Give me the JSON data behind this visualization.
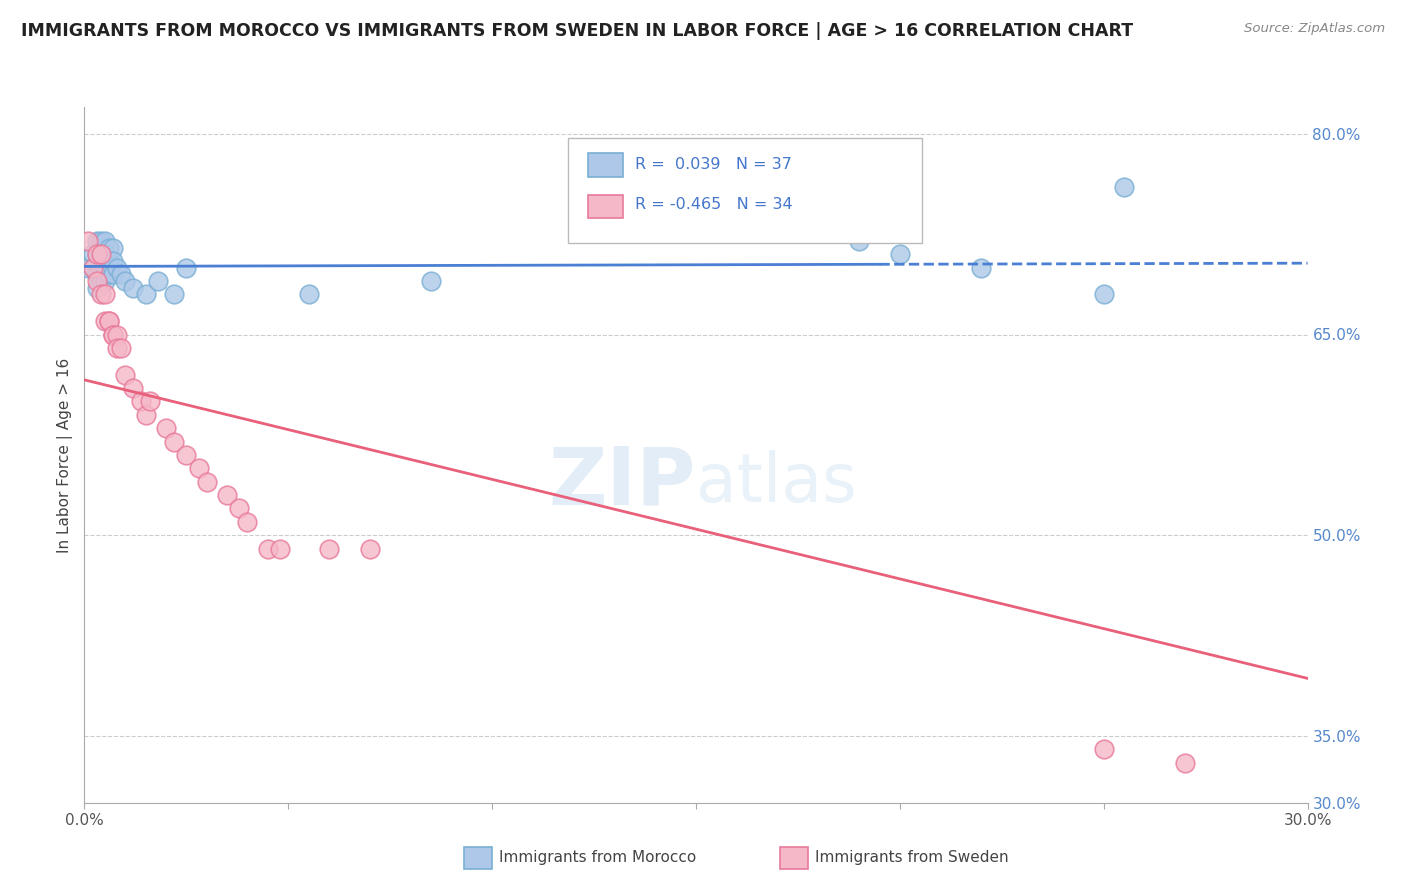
{
  "title": "IMMIGRANTS FROM MOROCCO VS IMMIGRANTS FROM SWEDEN IN LABOR FORCE | AGE > 16 CORRELATION CHART",
  "source": "Source: ZipAtlas.com",
  "ylabel": "In Labor Force | Age > 16",
  "xlim": [
    0.0,
    0.3
  ],
  "ylim": [
    0.3,
    0.82
  ],
  "watermark": "ZIPatlas",
  "morocco_color": "#adc8e8",
  "morocco_edge": "#7aafd4",
  "sweden_color": "#f5b8c8",
  "sweden_edge": "#e87a9a",
  "line_morocco": "#4a7fd4",
  "line_sweden": "#e8607a",
  "grid_color": "#cccccc",
  "background_color": "#ffffff",
  "morocco_x": [
    0.001,
    0.002,
    0.002,
    0.003,
    0.003,
    0.003,
    0.003,
    0.004,
    0.004,
    0.004,
    0.004,
    0.005,
    0.005,
    0.005,
    0.005,
    0.005,
    0.006,
    0.006,
    0.006,
    0.007,
    0.007,
    0.007,
    0.008,
    0.009,
    0.01,
    0.012,
    0.015,
    0.018,
    0.022,
    0.025,
    0.055,
    0.085,
    0.19,
    0.2,
    0.22,
    0.25,
    0.255
  ],
  "morocco_y": [
    0.7,
    0.71,
    0.7,
    0.72,
    0.71,
    0.695,
    0.685,
    0.72,
    0.71,
    0.7,
    0.69,
    0.72,
    0.71,
    0.7,
    0.695,
    0.69,
    0.715,
    0.705,
    0.695,
    0.715,
    0.705,
    0.695,
    0.7,
    0.695,
    0.69,
    0.685,
    0.68,
    0.69,
    0.68,
    0.7,
    0.68,
    0.69,
    0.72,
    0.71,
    0.7,
    0.68,
    0.76
  ],
  "sweden_x": [
    0.001,
    0.002,
    0.003,
    0.003,
    0.004,
    0.004,
    0.005,
    0.005,
    0.006,
    0.006,
    0.007,
    0.007,
    0.008,
    0.008,
    0.009,
    0.01,
    0.012,
    0.014,
    0.015,
    0.016,
    0.02,
    0.022,
    0.025,
    0.028,
    0.03,
    0.035,
    0.038,
    0.04,
    0.045,
    0.048,
    0.06,
    0.07,
    0.25,
    0.27
  ],
  "sweden_y": [
    0.72,
    0.7,
    0.71,
    0.69,
    0.71,
    0.68,
    0.68,
    0.66,
    0.66,
    0.66,
    0.65,
    0.65,
    0.65,
    0.64,
    0.64,
    0.62,
    0.61,
    0.6,
    0.59,
    0.6,
    0.58,
    0.57,
    0.56,
    0.55,
    0.54,
    0.53,
    0.52,
    0.51,
    0.49,
    0.49,
    0.49,
    0.49,
    0.34,
    0.33
  ],
  "morocco_line_x": [
    0.0,
    0.195,
    0.195,
    0.3
  ],
  "morocco_line_style": [
    "solid",
    "dashed"
  ],
  "sweden_line_x": [
    0.0,
    0.3
  ],
  "y_ticks_right": [
    0.3,
    0.35,
    0.5,
    0.65,
    0.8
  ],
  "y_tick_labels_right": [
    "30.0%",
    "35.0%",
    "50.0%",
    "65.0%",
    "80.0%"
  ]
}
